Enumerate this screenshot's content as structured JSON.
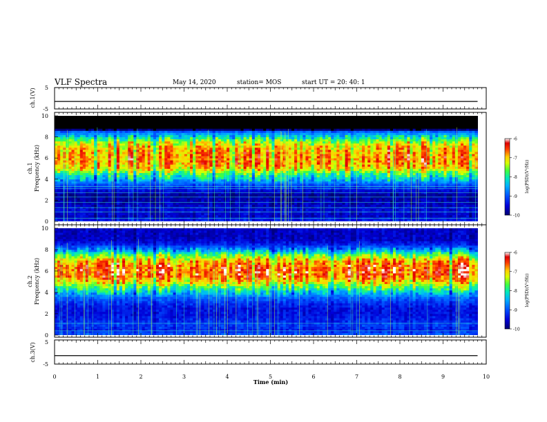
{
  "header": {
    "title": "VLF Spectra",
    "date": "May 14, 2020",
    "station": "station= MOS",
    "start": "start  UT  =   20: 40: 1"
  },
  "panels": {
    "ch1v": {
      "ylabel": "ch.1(V)",
      "yticks": [
        "5",
        "-5"
      ]
    },
    "ch1": {
      "ylabel_channel": "ch.1",
      "ylabel": "Frequency  (kHz)",
      "yticks": [
        "0",
        "2",
        "4",
        "6",
        "8",
        "10"
      ]
    },
    "ch2": {
      "ylabel_channel": "ch.2",
      "ylabel": "Frequency  (kHz)",
      "yticks": [
        "0",
        "2",
        "4",
        "6",
        "8",
        "10"
      ]
    },
    "ch3v": {
      "ylabel": "ch.3(V)",
      "yticks": [
        "5",
        "-5"
      ]
    }
  },
  "xaxis": {
    "label": "Time  (min)",
    "ticks": [
      "0",
      "1",
      "2",
      "3",
      "4",
      "5",
      "6",
      "7",
      "8",
      "9",
      "10"
    ]
  },
  "colorbar": {
    "label": "log(PSD)(V²/Hz)",
    "ticks": [
      "-6",
      "-7",
      "-8",
      "-9",
      "-10"
    ]
  },
  "chart_data": [
    {
      "type": "line",
      "title": "",
      "ylabel": "ch.1(V)",
      "xlabel": "Time  (min)",
      "xlim": [
        0,
        10
      ],
      "ylim": [
        -5,
        5
      ],
      "series": [
        {
          "x": [
            0,
            9.8
          ],
          "values": [
            -1.5,
            -1.5
          ]
        }
      ]
    },
    {
      "type": "heatmap",
      "title": "",
      "ylabel": "Frequency  (kHz)",
      "xlabel": "Time  (min)",
      "xlim": [
        0,
        9.8
      ],
      "ylim": [
        0,
        10
      ],
      "colorscale": {
        "label": "log(PSD)(V²/Hz)",
        "range": [
          -10,
          -6
        ]
      },
      "band_profile": [
        {
          "f": 0.1,
          "log_psd": -9.3
        },
        {
          "f": 0.5,
          "log_psd": -9.6
        },
        {
          "f": 1.0,
          "log_psd": -9.5
        },
        {
          "f": 1.5,
          "log_psd": -9.6
        },
        {
          "f": 2.0,
          "log_psd": -9.7
        },
        {
          "f": 2.5,
          "log_psd": -9.8
        },
        {
          "f": 3.0,
          "log_psd": -9.4
        },
        {
          "f": 3.5,
          "log_psd": -9.0
        },
        {
          "f": 4.0,
          "log_psd": -8.3
        },
        {
          "f": 4.5,
          "log_psd": -7.8
        },
        {
          "f": 5.0,
          "log_psd": -7.0
        },
        {
          "f": 5.5,
          "log_psd": -6.8
        },
        {
          "f": 6.0,
          "log_psd": -6.7
        },
        {
          "f": 6.5,
          "log_psd": -6.8
        },
        {
          "f": 7.0,
          "log_psd": -6.9
        },
        {
          "f": 7.5,
          "log_psd": -7.3
        },
        {
          "f": 8.0,
          "log_psd": -8.1
        },
        {
          "f": 8.5,
          "log_psd": -8.9
        },
        {
          "f": 8.8,
          "log_psd": -10.5
        },
        {
          "f": 10.0,
          "log_psd": -10.5
        }
      ],
      "narrowband_lines_khz": [
        0.3,
        0.9,
        1.3,
        1.8,
        2.3,
        2.7,
        3.1,
        3.3
      ]
    },
    {
      "type": "heatmap",
      "title": "",
      "ylabel": "Frequency  (kHz)",
      "xlabel": "Time  (min)",
      "xlim": [
        0,
        9.8
      ],
      "ylim": [
        0,
        10
      ],
      "colorscale": {
        "label": "log(PSD)(V²/Hz)",
        "range": [
          -10,
          -6
        ]
      },
      "band_profile": [
        {
          "f": 0.1,
          "log_psd": -9.0
        },
        {
          "f": 0.5,
          "log_psd": -9.3
        },
        {
          "f": 1.0,
          "log_psd": -9.1
        },
        {
          "f": 1.5,
          "log_psd": -9.3
        },
        {
          "f": 2.0,
          "log_psd": -9.4
        },
        {
          "f": 2.5,
          "log_psd": -9.4
        },
        {
          "f": 3.0,
          "log_psd": -9.2
        },
        {
          "f": 3.5,
          "log_psd": -8.9
        },
        {
          "f": 4.0,
          "log_psd": -8.3
        },
        {
          "f": 4.5,
          "log_psd": -7.7
        },
        {
          "f": 5.0,
          "log_psd": -7.0
        },
        {
          "f": 5.5,
          "log_psd": -6.6
        },
        {
          "f": 6.0,
          "log_psd": -6.5
        },
        {
          "f": 6.5,
          "log_psd": -6.6
        },
        {
          "f": 7.0,
          "log_psd": -6.9
        },
        {
          "f": 7.5,
          "log_psd": -7.6
        },
        {
          "f": 8.0,
          "log_psd": -8.6
        },
        {
          "f": 8.5,
          "log_psd": -9.3
        },
        {
          "f": 9.0,
          "log_psd": -9.6
        },
        {
          "f": 10.0,
          "log_psd": -9.6
        }
      ],
      "narrowband_lines_khz": [
        0.4,
        1.1
      ]
    },
    {
      "type": "line",
      "title": "",
      "ylabel": "ch.3(V)",
      "xlabel": "Time  (min)",
      "xlim": [
        0,
        10
      ],
      "ylim": [
        -5,
        5
      ],
      "series": [
        {
          "x": [
            0,
            9.8
          ],
          "values": [
            -1.5,
            -1.5
          ]
        }
      ]
    }
  ]
}
